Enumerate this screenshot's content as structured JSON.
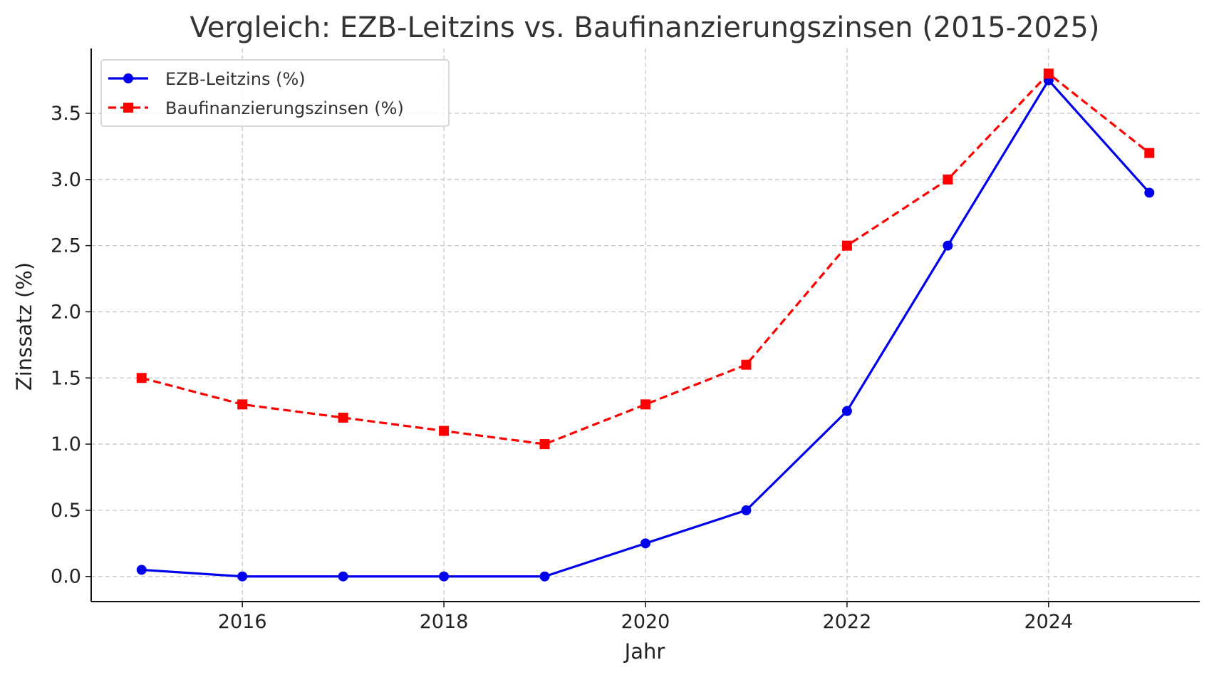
{
  "chart_data": {
    "type": "line",
    "title": "Vergleich: EZB-Leitzins vs. Baufinanzierungszinsen (2015-2025)",
    "xlabel": "Jahr",
    "ylabel": "Zinssatz (%)",
    "x": [
      2015,
      2016,
      2017,
      2018,
      2019,
      2020,
      2021,
      2022,
      2023,
      2024,
      2025
    ],
    "xlim": [
      2014.5,
      2025.5
    ],
    "ylim": [
      -0.19,
      3.99
    ],
    "xticks": [
      2016,
      2018,
      2020,
      2022,
      2024
    ],
    "xtick_labels": [
      "2016",
      "2018",
      "2020",
      "2022",
      "2024"
    ],
    "yticks": [
      0.0,
      0.5,
      1.0,
      1.5,
      2.0,
      2.5,
      3.0,
      3.5
    ],
    "ytick_labels": [
      "0.0",
      "0.5",
      "1.0",
      "1.5",
      "2.0",
      "2.5",
      "3.0",
      "3.5"
    ],
    "grid": true,
    "legend_position": "top-left",
    "series": [
      {
        "name": "EZB-Leitzins (%)",
        "values": [
          0.05,
          0.0,
          0.0,
          0.0,
          0.0,
          0.25,
          0.5,
          1.25,
          2.5,
          3.75,
          2.9
        ],
        "color": "#0000ee",
        "line_style": "solid",
        "marker": "circle"
      },
      {
        "name": "Baufinanzierungszinsen (%)",
        "values": [
          1.5,
          1.3,
          1.2,
          1.1,
          1.0,
          1.3,
          1.6,
          2.5,
          3.0,
          3.8,
          3.2
        ],
        "color": "#ff0000",
        "line_style": "dashed",
        "marker": "square"
      }
    ]
  }
}
